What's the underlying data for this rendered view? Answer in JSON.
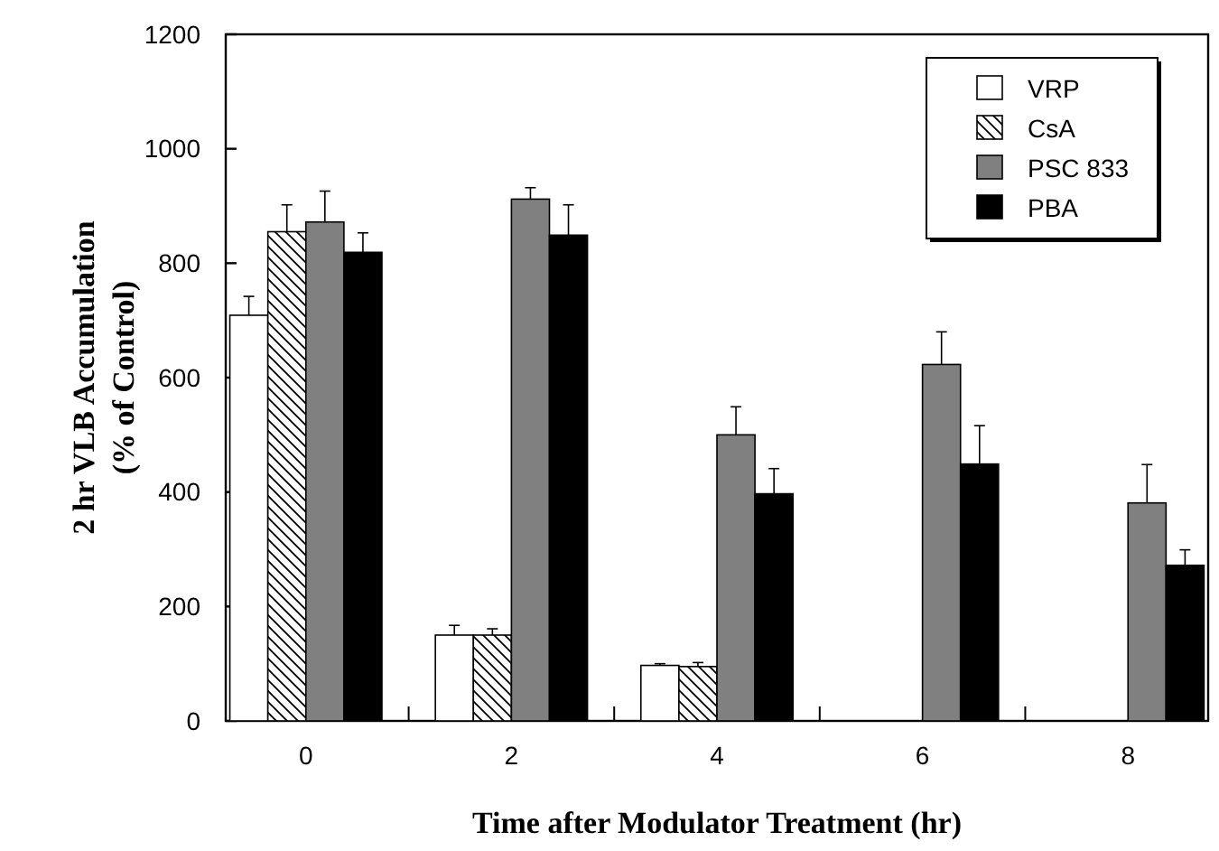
{
  "chart_data": {
    "type": "bar",
    "xlabel": "Time after Modulator Treatment (hr)",
    "ylabel": "2 hr VLB Accumulation\n(% of Control)",
    "categories": [
      "0",
      "2",
      "4",
      "6",
      "8"
    ],
    "series": [
      {
        "name": "VRP",
        "color": "#ffffff",
        "values": [
          709,
          150,
          97,
          null,
          null
        ],
        "errors": [
          33,
          17,
          3,
          null,
          null
        ]
      },
      {
        "name": "CsA",
        "color": "#000000",
        "values": [
          855,
          150,
          95,
          null,
          null
        ],
        "errors": [
          47,
          11,
          7,
          null,
          null
        ]
      },
      {
        "name": "PSC 833",
        "color": "#808080",
        "values": [
          872,
          912,
          500,
          623,
          381
        ],
        "errors": [
          54,
          20,
          49,
          57,
          67
        ]
      },
      {
        "name": "PBA",
        "color": "#000000",
        "values": [
          819,
          849,
          397,
          449,
          272
        ],
        "errors": [
          34,
          53,
          44,
          67,
          27
        ]
      }
    ],
    "ylim": [
      0,
      1200
    ],
    "yticks": [
      0,
      200,
      400,
      600,
      800,
      1000,
      1200
    ],
    "grid": false,
    "legend": "top right"
  }
}
